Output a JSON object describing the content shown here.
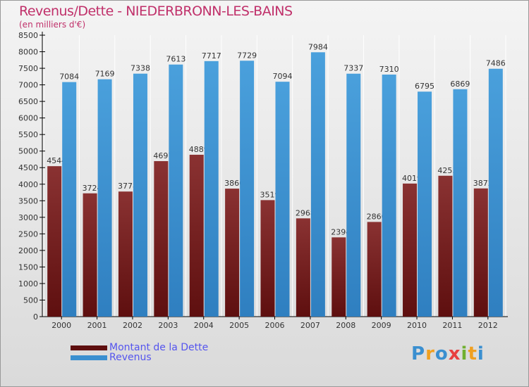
{
  "title": "Revenus/Dette - NIEDERBRONN-LES-BAINS",
  "subtitle": "(en milliers d'€)",
  "logo": "Proxiti",
  "chart_data": {
    "type": "bar",
    "title": "Revenus/Dette - NIEDERBRONN-LES-BAINS",
    "ylabel": "(en milliers d'€)",
    "categories": [
      "2000",
      "2001",
      "2002",
      "2003",
      "2004",
      "2005",
      "2006",
      "2007",
      "2008",
      "2009",
      "2010",
      "2011",
      "2012"
    ],
    "series": [
      {
        "name": "Montant de la Dette",
        "color": "#7a1e1e",
        "values": [
          4544,
          3724,
          3778,
          4697,
          4889,
          3866,
          3519,
          2968,
          2394,
          2860,
          4019,
          4255,
          3872
        ]
      },
      {
        "name": "Revenus",
        "color": "#3a8fd0",
        "values": [
          7084,
          7169,
          7338,
          7613,
          7717,
          7729,
          7094,
          7984,
          7337,
          7310,
          6795,
          6869,
          7486
        ]
      }
    ],
    "ylim": [
      0,
      8500
    ],
    "yticks": [
      0,
      500,
      1000,
      1500,
      2000,
      2500,
      3000,
      3500,
      4000,
      4500,
      5000,
      5500,
      6000,
      6500,
      7000,
      7500,
      8000,
      8500
    ],
    "legend": "bottom-left"
  }
}
